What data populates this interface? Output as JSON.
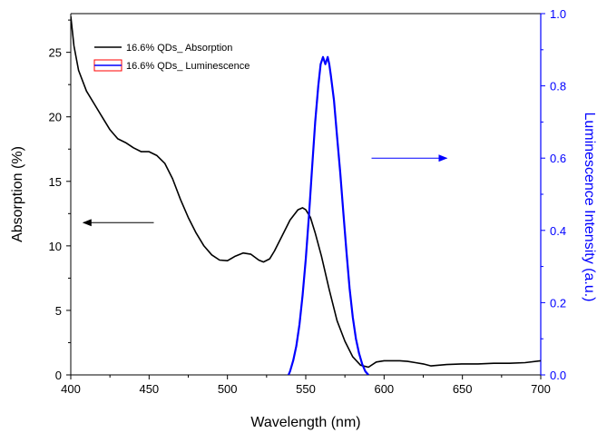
{
  "chart_data": {
    "type": "line",
    "xlabel": "Wavelength (nm)",
    "ylabel_left": "Absorption (%)",
    "ylabel_right": "Luminescence Intensity (a.u.)",
    "xlim": [
      400,
      700
    ],
    "ylim_left": [
      0,
      28
    ],
    "ylim_right": [
      0,
      1.0
    ],
    "x_ticks": [
      400,
      450,
      500,
      550,
      600,
      650,
      700
    ],
    "x_tick_labels": [
      "400",
      "450",
      "500",
      "550",
      "600",
      "650",
      "700"
    ],
    "left_ticks": [
      0,
      5,
      10,
      15,
      20,
      25
    ],
    "left_tick_labels": [
      "0",
      "5",
      "10",
      "15",
      "20",
      "25"
    ],
    "right_ticks": [
      0,
      0.2,
      0.4,
      0.6,
      0.8,
      1.0
    ],
    "right_tick_labels": [
      "0.0",
      "0.2",
      "0.4",
      "0.6",
      "0.8",
      "1.0"
    ],
    "grid": false,
    "legend_position": "top-left",
    "series": [
      {
        "name": "16.6% QDs_ Absorption",
        "axis": "left",
        "color": "#000000",
        "points": [
          [
            400,
            27.8
          ],
          [
            402,
            25.5
          ],
          [
            405,
            23.6
          ],
          [
            410,
            22.0
          ],
          [
            415,
            21.0
          ],
          [
            420,
            20.0
          ],
          [
            425,
            19.0
          ],
          [
            430,
            18.3
          ],
          [
            435,
            18.0
          ],
          [
            440,
            17.6
          ],
          [
            445,
            17.3
          ],
          [
            450,
            17.3
          ],
          [
            455,
            17.0
          ],
          [
            460,
            16.4
          ],
          [
            465,
            15.2
          ],
          [
            470,
            13.6
          ],
          [
            475,
            12.2
          ],
          [
            480,
            11.0
          ],
          [
            485,
            10.0
          ],
          [
            490,
            9.3
          ],
          [
            495,
            8.9
          ],
          [
            500,
            8.85
          ],
          [
            505,
            9.2
          ],
          [
            510,
            9.45
          ],
          [
            515,
            9.35
          ],
          [
            520,
            8.9
          ],
          [
            523,
            8.75
          ],
          [
            527,
            9.0
          ],
          [
            530,
            9.6
          ],
          [
            535,
            10.8
          ],
          [
            540,
            12.0
          ],
          [
            545,
            12.8
          ],
          [
            548,
            12.95
          ],
          [
            550,
            12.8
          ],
          [
            553,
            12.2
          ],
          [
            556,
            11.0
          ],
          [
            560,
            9.2
          ],
          [
            565,
            6.6
          ],
          [
            570,
            4.2
          ],
          [
            575,
            2.6
          ],
          [
            580,
            1.4
          ],
          [
            585,
            0.75
          ],
          [
            590,
            0.6
          ],
          [
            595,
            1.0
          ],
          [
            600,
            1.1
          ],
          [
            610,
            1.1
          ],
          [
            615,
            1.05
          ],
          [
            620,
            0.95
          ],
          [
            625,
            0.85
          ],
          [
            630,
            0.7
          ],
          [
            640,
            0.8
          ],
          [
            650,
            0.85
          ],
          [
            660,
            0.85
          ],
          [
            670,
            0.9
          ],
          [
            680,
            0.9
          ],
          [
            690,
            0.95
          ],
          [
            700,
            1.1
          ]
        ]
      },
      {
        "name": "16.6% QDs_ Luminescence",
        "axis": "right",
        "color": "#0000ff",
        "points": [
          [
            539,
            0.0
          ],
          [
            540,
            0.01
          ],
          [
            542,
            0.04
          ],
          [
            544,
            0.08
          ],
          [
            546,
            0.14
          ],
          [
            548,
            0.22
          ],
          [
            550,
            0.32
          ],
          [
            552,
            0.44
          ],
          [
            554,
            0.57
          ],
          [
            556,
            0.7
          ],
          [
            558,
            0.8
          ],
          [
            559.5,
            0.86
          ],
          [
            561,
            0.88
          ],
          [
            562.5,
            0.86
          ],
          [
            564,
            0.88
          ],
          [
            565,
            0.86
          ],
          [
            566,
            0.83
          ],
          [
            568,
            0.76
          ],
          [
            570,
            0.66
          ],
          [
            572,
            0.56
          ],
          [
            574,
            0.45
          ],
          [
            576,
            0.34
          ],
          [
            578,
            0.24
          ],
          [
            580,
            0.16
          ],
          [
            582,
            0.1
          ],
          [
            584,
            0.06
          ],
          [
            586,
            0.03
          ],
          [
            588,
            0.01
          ],
          [
            590,
            0.0
          ]
        ]
      }
    ],
    "annotations": [
      {
        "type": "arrow",
        "direction": "left",
        "color": "#000000",
        "from": [
          453,
          11.8
        ],
        "to": [
          408,
          11.8
        ]
      },
      {
        "type": "arrow",
        "direction": "right",
        "color": "#0000ff",
        "from": [
          592,
          0.6
        ],
        "to": [
          640,
          0.6
        ]
      }
    ]
  }
}
